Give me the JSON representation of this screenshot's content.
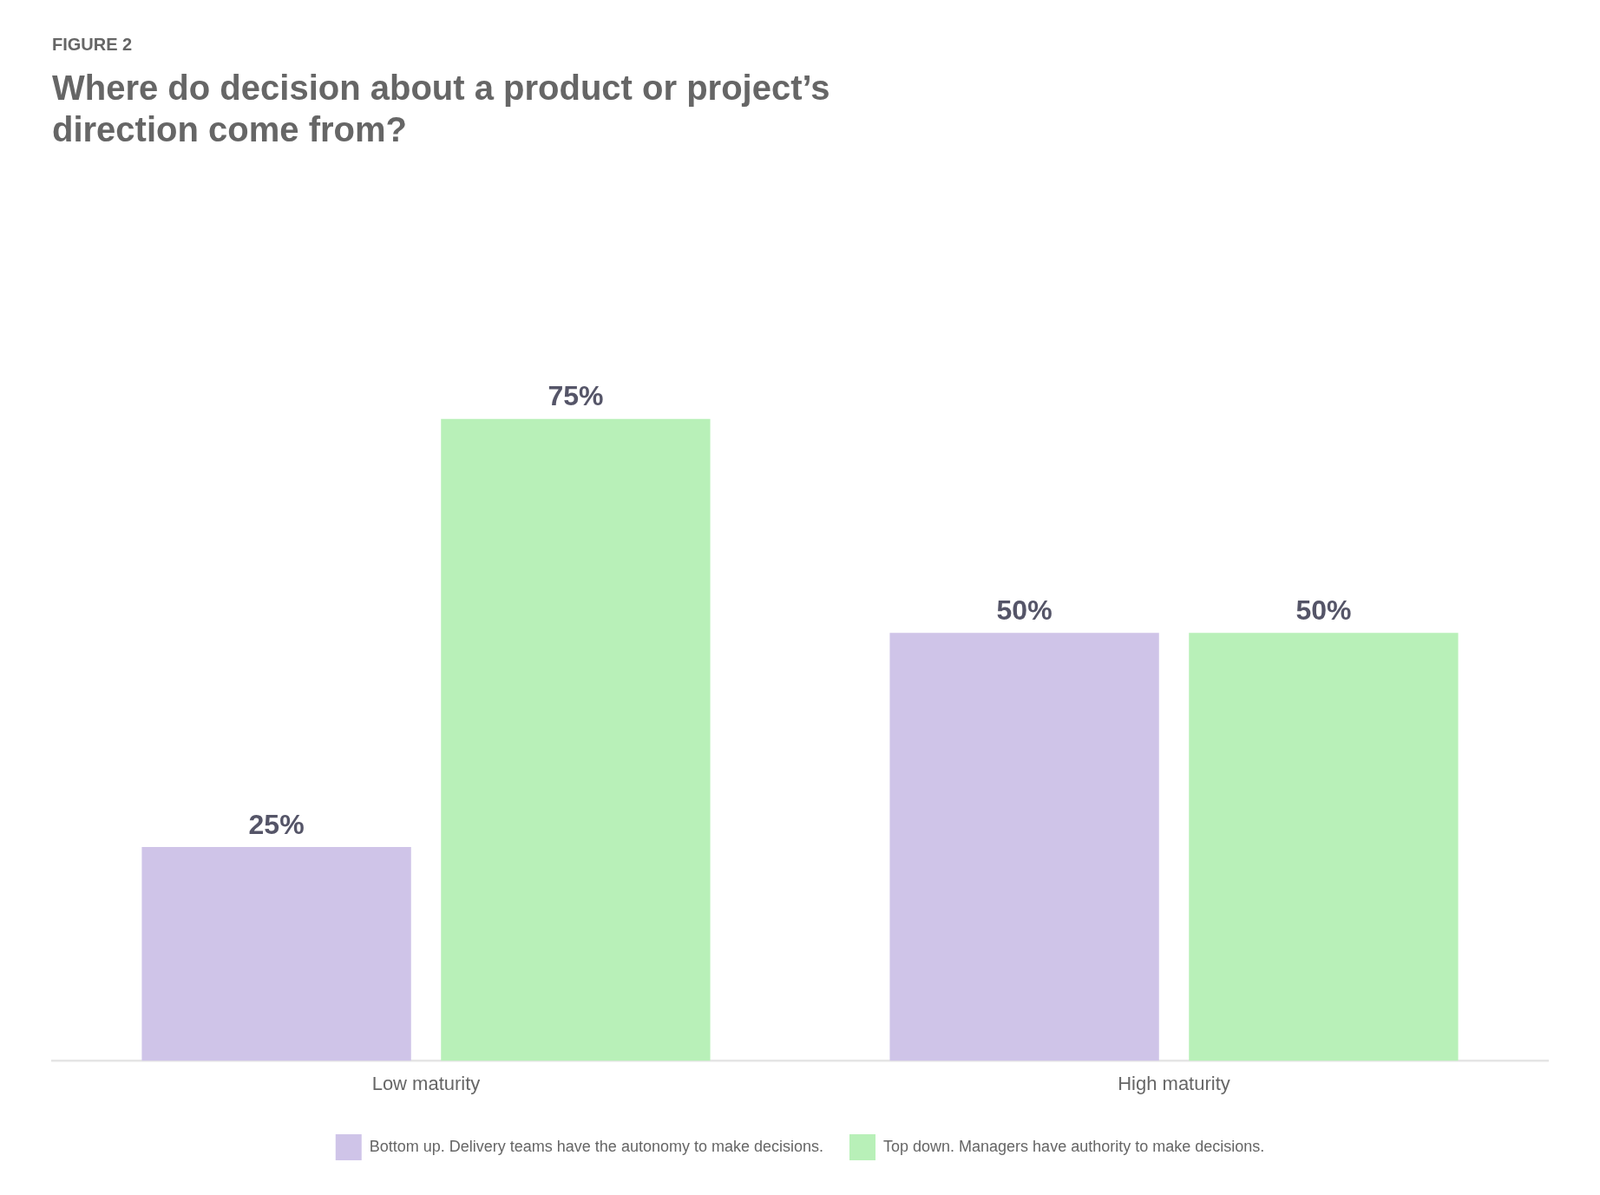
{
  "chart_data": {
    "type": "bar",
    "subtitle": "FIGURE 2",
    "title": [
      "Where do decision about a product or project’s",
      "direction come from?"
    ],
    "categories": [
      "Low maturity",
      "High maturity"
    ],
    "series": [
      {
        "name": "Bottom up. Delivery teams have\nthe autonomy to make decisions.",
        "color": "#cfc4e8",
        "values": [
          25,
          50
        ],
        "value_labels": [
          "25%",
          "50%"
        ]
      },
      {
        "name": "Top down. Managers have\nauthority to make decisions.",
        "color": "#b8f0b8",
        "values": [
          75,
          50
        ],
        "value_labels": [
          "75%",
          "50%"
        ]
      }
    ],
    "ylim": [
      0,
      100
    ],
    "grid": false,
    "legend": "bottom",
    "data_labels": true,
    "tick_labels": "x"
  }
}
